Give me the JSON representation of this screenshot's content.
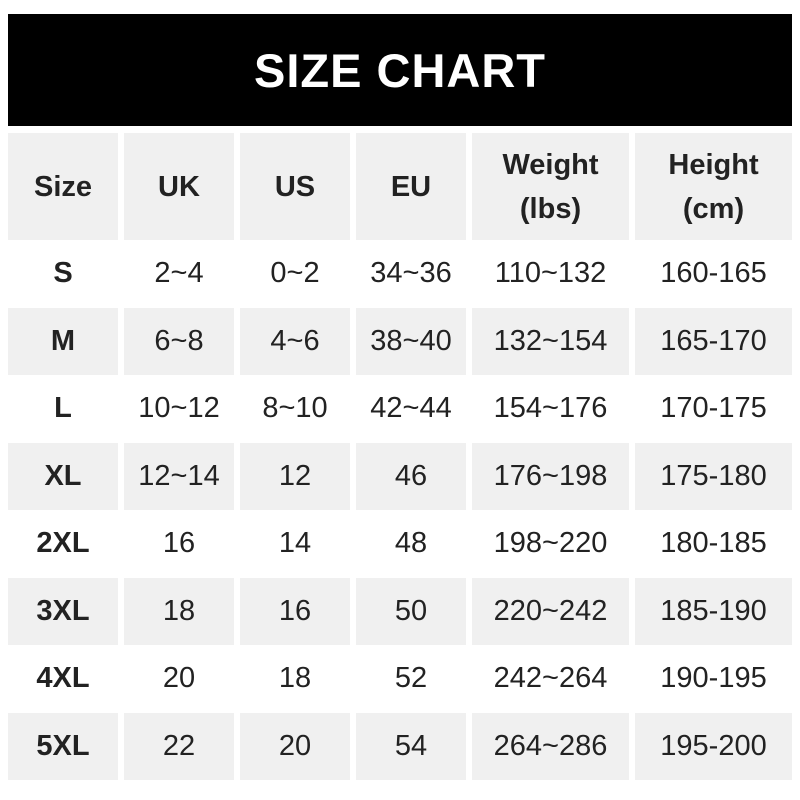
{
  "colors": {
    "banner_bg": "#000000",
    "banner_text": "#ffffff",
    "row_alt_bg": "#f0f0f0",
    "text": "#222222"
  },
  "chart_data": {
    "type": "table",
    "title": "SIZE CHART",
    "columns": [
      {
        "line1": "Size",
        "line2": ""
      },
      {
        "line1": "UK",
        "line2": ""
      },
      {
        "line1": "US",
        "line2": ""
      },
      {
        "line1": "EU",
        "line2": ""
      },
      {
        "line1": "Weight",
        "line2": "(lbs)"
      },
      {
        "line1": "Height",
        "line2": "(cm)"
      }
    ],
    "rows": [
      {
        "size": "S",
        "uk": "2~4",
        "us": "0~2",
        "eu": "34~36",
        "weight": "110~132",
        "height": "160-165"
      },
      {
        "size": "M",
        "uk": "6~8",
        "us": "4~6",
        "eu": "38~40",
        "weight": "132~154",
        "height": "165-170"
      },
      {
        "size": "L",
        "uk": "10~12",
        "us": "8~10",
        "eu": "42~44",
        "weight": "154~176",
        "height": "170-175"
      },
      {
        "size": "XL",
        "uk": "12~14",
        "us": "12",
        "eu": "46",
        "weight": "176~198",
        "height": "175-180"
      },
      {
        "size": "2XL",
        "uk": "16",
        "us": "14",
        "eu": "48",
        "weight": "198~220",
        "height": "180-185"
      },
      {
        "size": "3XL",
        "uk": "18",
        "us": "16",
        "eu": "50",
        "weight": "220~242",
        "height": "185-190"
      },
      {
        "size": "4XL",
        "uk": "20",
        "us": "18",
        "eu": "52",
        "weight": "242~264",
        "height": "190-195"
      },
      {
        "size": "5XL",
        "uk": "22",
        "us": "20",
        "eu": "54",
        "weight": "264~286",
        "height": "195-200"
      }
    ]
  }
}
